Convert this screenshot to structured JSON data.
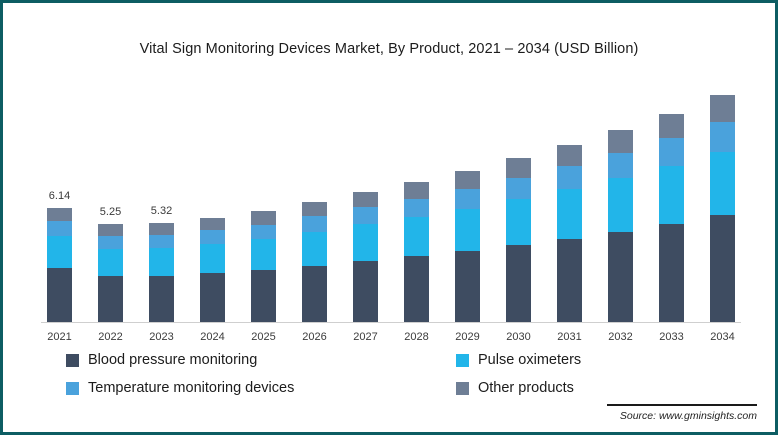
{
  "chart_data": {
    "type": "bar",
    "stacked": true,
    "title": "Vital Sign Monitoring Devices Market, By Product, 2021 – 2034 (USD Billion)",
    "categories": [
      "2021",
      "2022",
      "2023",
      "2024",
      "2025",
      "2026",
      "2027",
      "2028",
      "2029",
      "2030",
      "2031",
      "2032",
      "2033",
      "2034"
    ],
    "series": [
      {
        "name": "Blood pressure monitoring",
        "color": "#3e4c61",
        "values": [
          2.89,
          2.47,
          2.5,
          2.63,
          2.8,
          3.03,
          3.29,
          3.53,
          3.81,
          4.14,
          4.47,
          4.84,
          5.26,
          5.73
        ]
      },
      {
        "name": "Pulse oximeters",
        "color": "#22b5e9",
        "values": [
          1.72,
          1.47,
          1.49,
          1.57,
          1.67,
          1.81,
          1.96,
          2.1,
          2.27,
          2.46,
          2.66,
          2.88,
          3.14,
          3.42
        ]
      },
      {
        "name": "Temperature monitoring devices",
        "color": "#4aa2dc",
        "values": [
          0.8,
          0.68,
          0.69,
          0.73,
          0.77,
          0.84,
          0.91,
          0.98,
          1.05,
          1.14,
          1.24,
          1.34,
          1.46,
          1.59
        ]
      },
      {
        "name": "Other products",
        "color": "#6e7e95",
        "values": [
          0.73,
          0.63,
          0.64,
          0.67,
          0.71,
          0.77,
          0.84,
          0.89,
          0.97,
          1.06,
          1.13,
          1.24,
          1.34,
          1.46
        ]
      }
    ],
    "value_labels": {
      "2021": "6.14",
      "2022": "5.25",
      "2023": "5.32"
    },
    "ylim": [
      0,
      13
    ],
    "grid": false,
    "legend_position": "bottom",
    "xlabel": "",
    "ylabel": ""
  },
  "source": "Source: www.gminsights.com",
  "colors": {
    "frame_border": "#0d5d63",
    "axis_line": "#cfcfcf"
  }
}
